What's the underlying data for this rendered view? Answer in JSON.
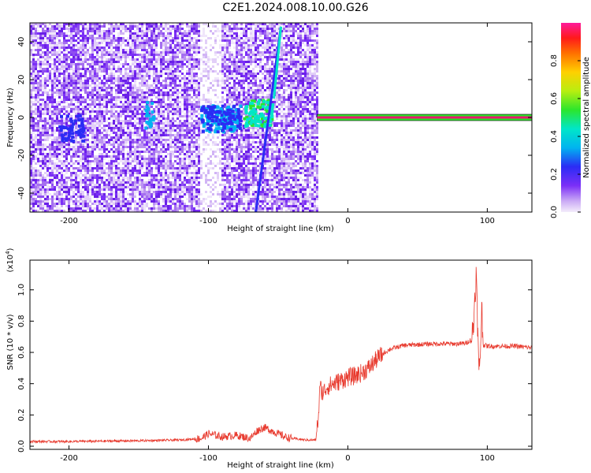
{
  "title": "C2E1.2024.008.10.00.G26",
  "colors": {
    "snr_line": "#e83a2e",
    "spectrogram_low": "#7b2ff7",
    "carrier": "#e8186c",
    "frame": "#000000"
  },
  "chart_data": [
    {
      "type": "heatmap",
      "xlabel": "Height of straight line (km)",
      "ylabel": "Frequency (Hz)",
      "xlim": [
        -228,
        132
      ],
      "ylim": [
        -50,
        50
      ],
      "xticks": [
        -200,
        -100,
        0,
        100
      ],
      "yticks": [
        -40,
        -20,
        0,
        20,
        40
      ],
      "colorbar": {
        "label": "Normalized spectral amplitude",
        "range": [
          0,
          1
        ],
        "ticks": [
          0.0,
          0.2,
          0.4,
          0.6,
          0.8
        ],
        "colormap": "rainbow"
      },
      "features": {
        "noise_region_km": [
          -228,
          -22
        ],
        "gap_km": [
          -106,
          -92
        ],
        "carrier_frequency_hz": 0,
        "carrier_start_km": -22,
        "streak_km": [
          -66,
          -48
        ],
        "streak_freq_hz": [
          -50,
          48
        ]
      }
    },
    {
      "type": "line",
      "xlabel": "Height of straight line (km)",
      "ylabel": "SNR (10 * v/v)",
      "yscale_label": "(x10",
      "yscale_exp": "4",
      "xlim": [
        -228,
        132
      ],
      "ylim": [
        -0.02,
        1.19
      ],
      "xticks": [
        -200,
        -100,
        0,
        100
      ],
      "yticks": [
        0.0,
        0.2,
        0.4,
        0.6,
        0.8,
        1.0
      ],
      "series": [
        {
          "x": [
            -228,
            -200,
            -150,
            -120,
            -105,
            -100,
            -95,
            -90,
            -80,
            -70,
            -65,
            -60,
            -55,
            -50,
            -45,
            -40,
            -30,
            -23,
            -21,
            -20,
            -18,
            -15,
            -10,
            -5,
            0,
            5,
            10,
            15,
            20,
            25,
            30,
            40,
            50,
            60,
            70,
            80,
            85,
            88,
            90,
            91,
            92,
            93,
            94,
            95,
            96,
            97,
            100,
            110,
            120,
            132
          ],
          "y": [
            0.03,
            0.03,
            0.035,
            0.04,
            0.05,
            0.08,
            0.07,
            0.06,
            0.07,
            0.05,
            0.1,
            0.12,
            0.1,
            0.08,
            0.06,
            0.05,
            0.04,
            0.04,
            0.2,
            0.38,
            0.34,
            0.38,
            0.4,
            0.42,
            0.44,
            0.45,
            0.47,
            0.5,
            0.55,
            0.59,
            0.62,
            0.645,
            0.65,
            0.655,
            0.655,
            0.655,
            0.66,
            0.68,
            0.75,
            0.95,
            1.1,
            0.8,
            0.45,
            0.6,
            0.9,
            0.65,
            0.64,
            0.64,
            0.64,
            0.63
          ]
        }
      ]
    }
  ]
}
